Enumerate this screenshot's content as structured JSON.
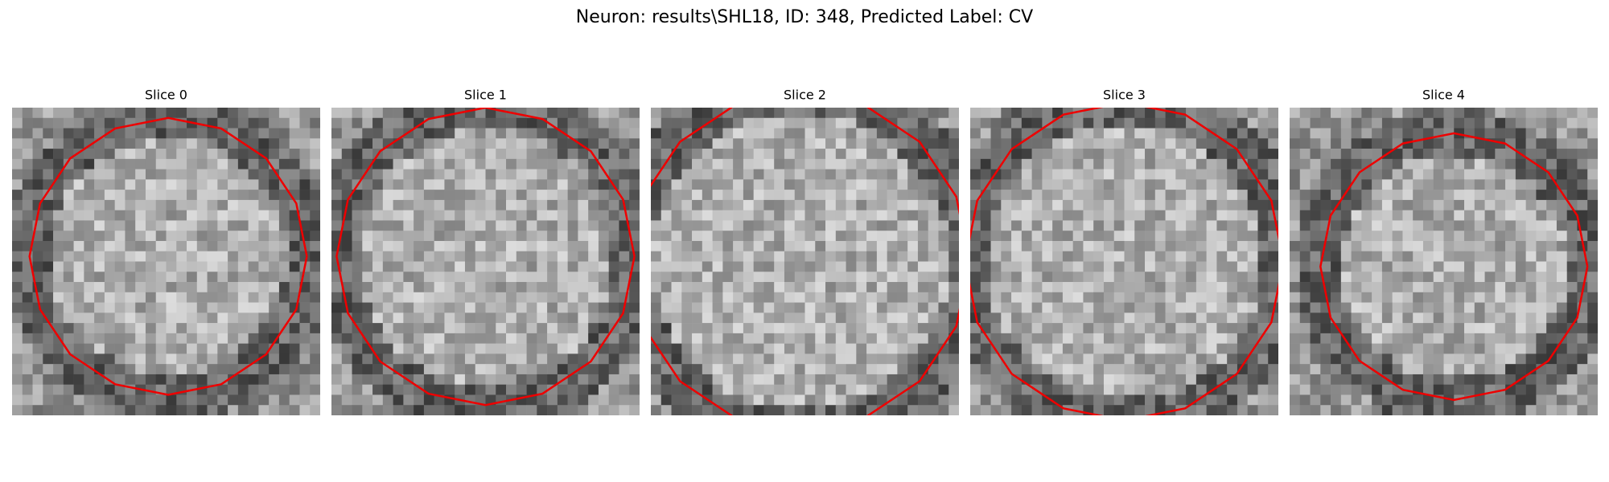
{
  "title": "Neuron: results\\SHL18, ID: 348, Predicted Label: CV",
  "panels": [
    {
      "title": "Slice 0"
    },
    {
      "title": "Slice 1"
    },
    {
      "title": "Slice 2"
    },
    {
      "title": "Slice 3"
    },
    {
      "title": "Slice 4"
    }
  ]
}
